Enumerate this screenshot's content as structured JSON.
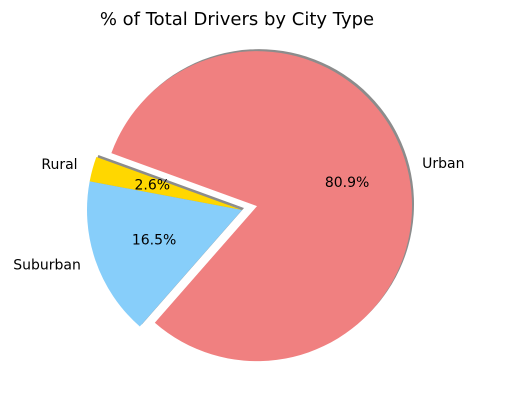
{
  "chart_data": {
    "type": "pie",
    "title": "% of Total Drivers by City Type",
    "slices": [
      {
        "label": "Rural",
        "value": 2.6,
        "pct_label": "2.6%",
        "color": "#ffd700",
        "explode": false
      },
      {
        "label": "Suburban",
        "value": 16.5,
        "pct_label": "16.5%",
        "color": "#87cefa",
        "explode": false
      },
      {
        "label": "Urban",
        "value": 80.9,
        "pct_label": "80.9%",
        "color": "#f08080",
        "explode": true
      }
    ],
    "shadow": true
  }
}
